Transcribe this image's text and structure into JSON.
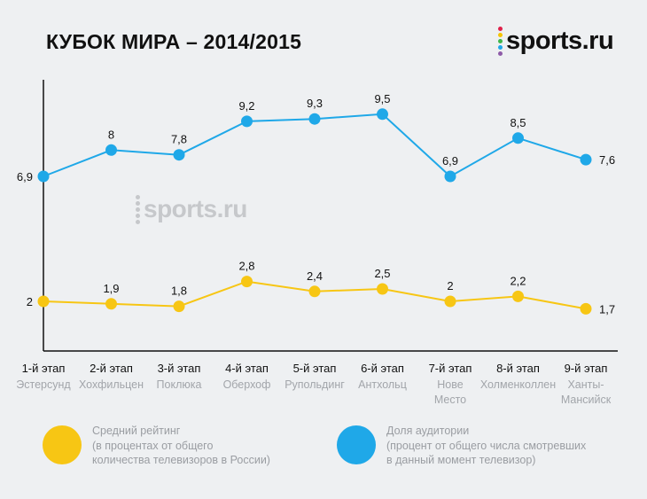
{
  "header": {
    "title": "КУБОК МИРА – 2014/2015",
    "logo_text": "sports.ru",
    "logo_dot_colors": [
      "#e0204a",
      "#f5c400",
      "#3fb549",
      "#1fa8e8",
      "#8e5ba8"
    ],
    "watermark_text": "sports.ru"
  },
  "chart_data": {
    "type": "line",
    "title": "КУБОК МИРА – 2014/2015",
    "xlabel": "",
    "ylabel": "",
    "grid": false,
    "legend_position": "bottom",
    "categories": [
      "1-й этап",
      "2-й этап",
      "3-й этап",
      "4-й этап",
      "5-й этап",
      "6-й этап",
      "7-й этап",
      "8-й этап",
      "9-й этап"
    ],
    "category_sublabels": [
      [
        "Эстерсунд"
      ],
      [
        "Хохфильцен"
      ],
      [
        "Поклюка"
      ],
      [
        "Оберхоф"
      ],
      [
        "Рупольдинг"
      ],
      [
        "Антхольц"
      ],
      [
        "Нове",
        "Место"
      ],
      [
        "Холменколлен"
      ],
      [
        "Ханты-",
        "Мансийск"
      ]
    ],
    "series": [
      {
        "name": "Доля аудитории",
        "color": "#1fa8e8",
        "values": [
          6.9,
          8,
          7.8,
          9.2,
          9.3,
          9.5,
          6.9,
          8.5,
          7.6
        ],
        "labels": [
          "6,9",
          "8",
          "7,8",
          "9,2",
          "9,3",
          "9,5",
          "6,9",
          "8,5",
          "7,6"
        ]
      },
      {
        "name": "Средний рейтинг",
        "color": "#f7c614",
        "values": [
          2,
          1.9,
          1.8,
          2.8,
          2.4,
          2.5,
          2,
          2.2,
          1.7
        ],
        "labels": [
          "2",
          "1,9",
          "1,8",
          "2,8",
          "2,4",
          "2,5",
          "2",
          "2,2",
          "1,7"
        ]
      }
    ]
  },
  "legend": {
    "rating": {
      "color": "#f7c614",
      "lines": [
        "Средний рейтинг",
        "(в процентах от общего",
        "количества телевизоров в России)"
      ]
    },
    "share": {
      "color": "#1fa8e8",
      "lines": [
        "Доля аудитории",
        "(процент от общего числа смотревших",
        "в данный момент телевизор)"
      ]
    }
  }
}
